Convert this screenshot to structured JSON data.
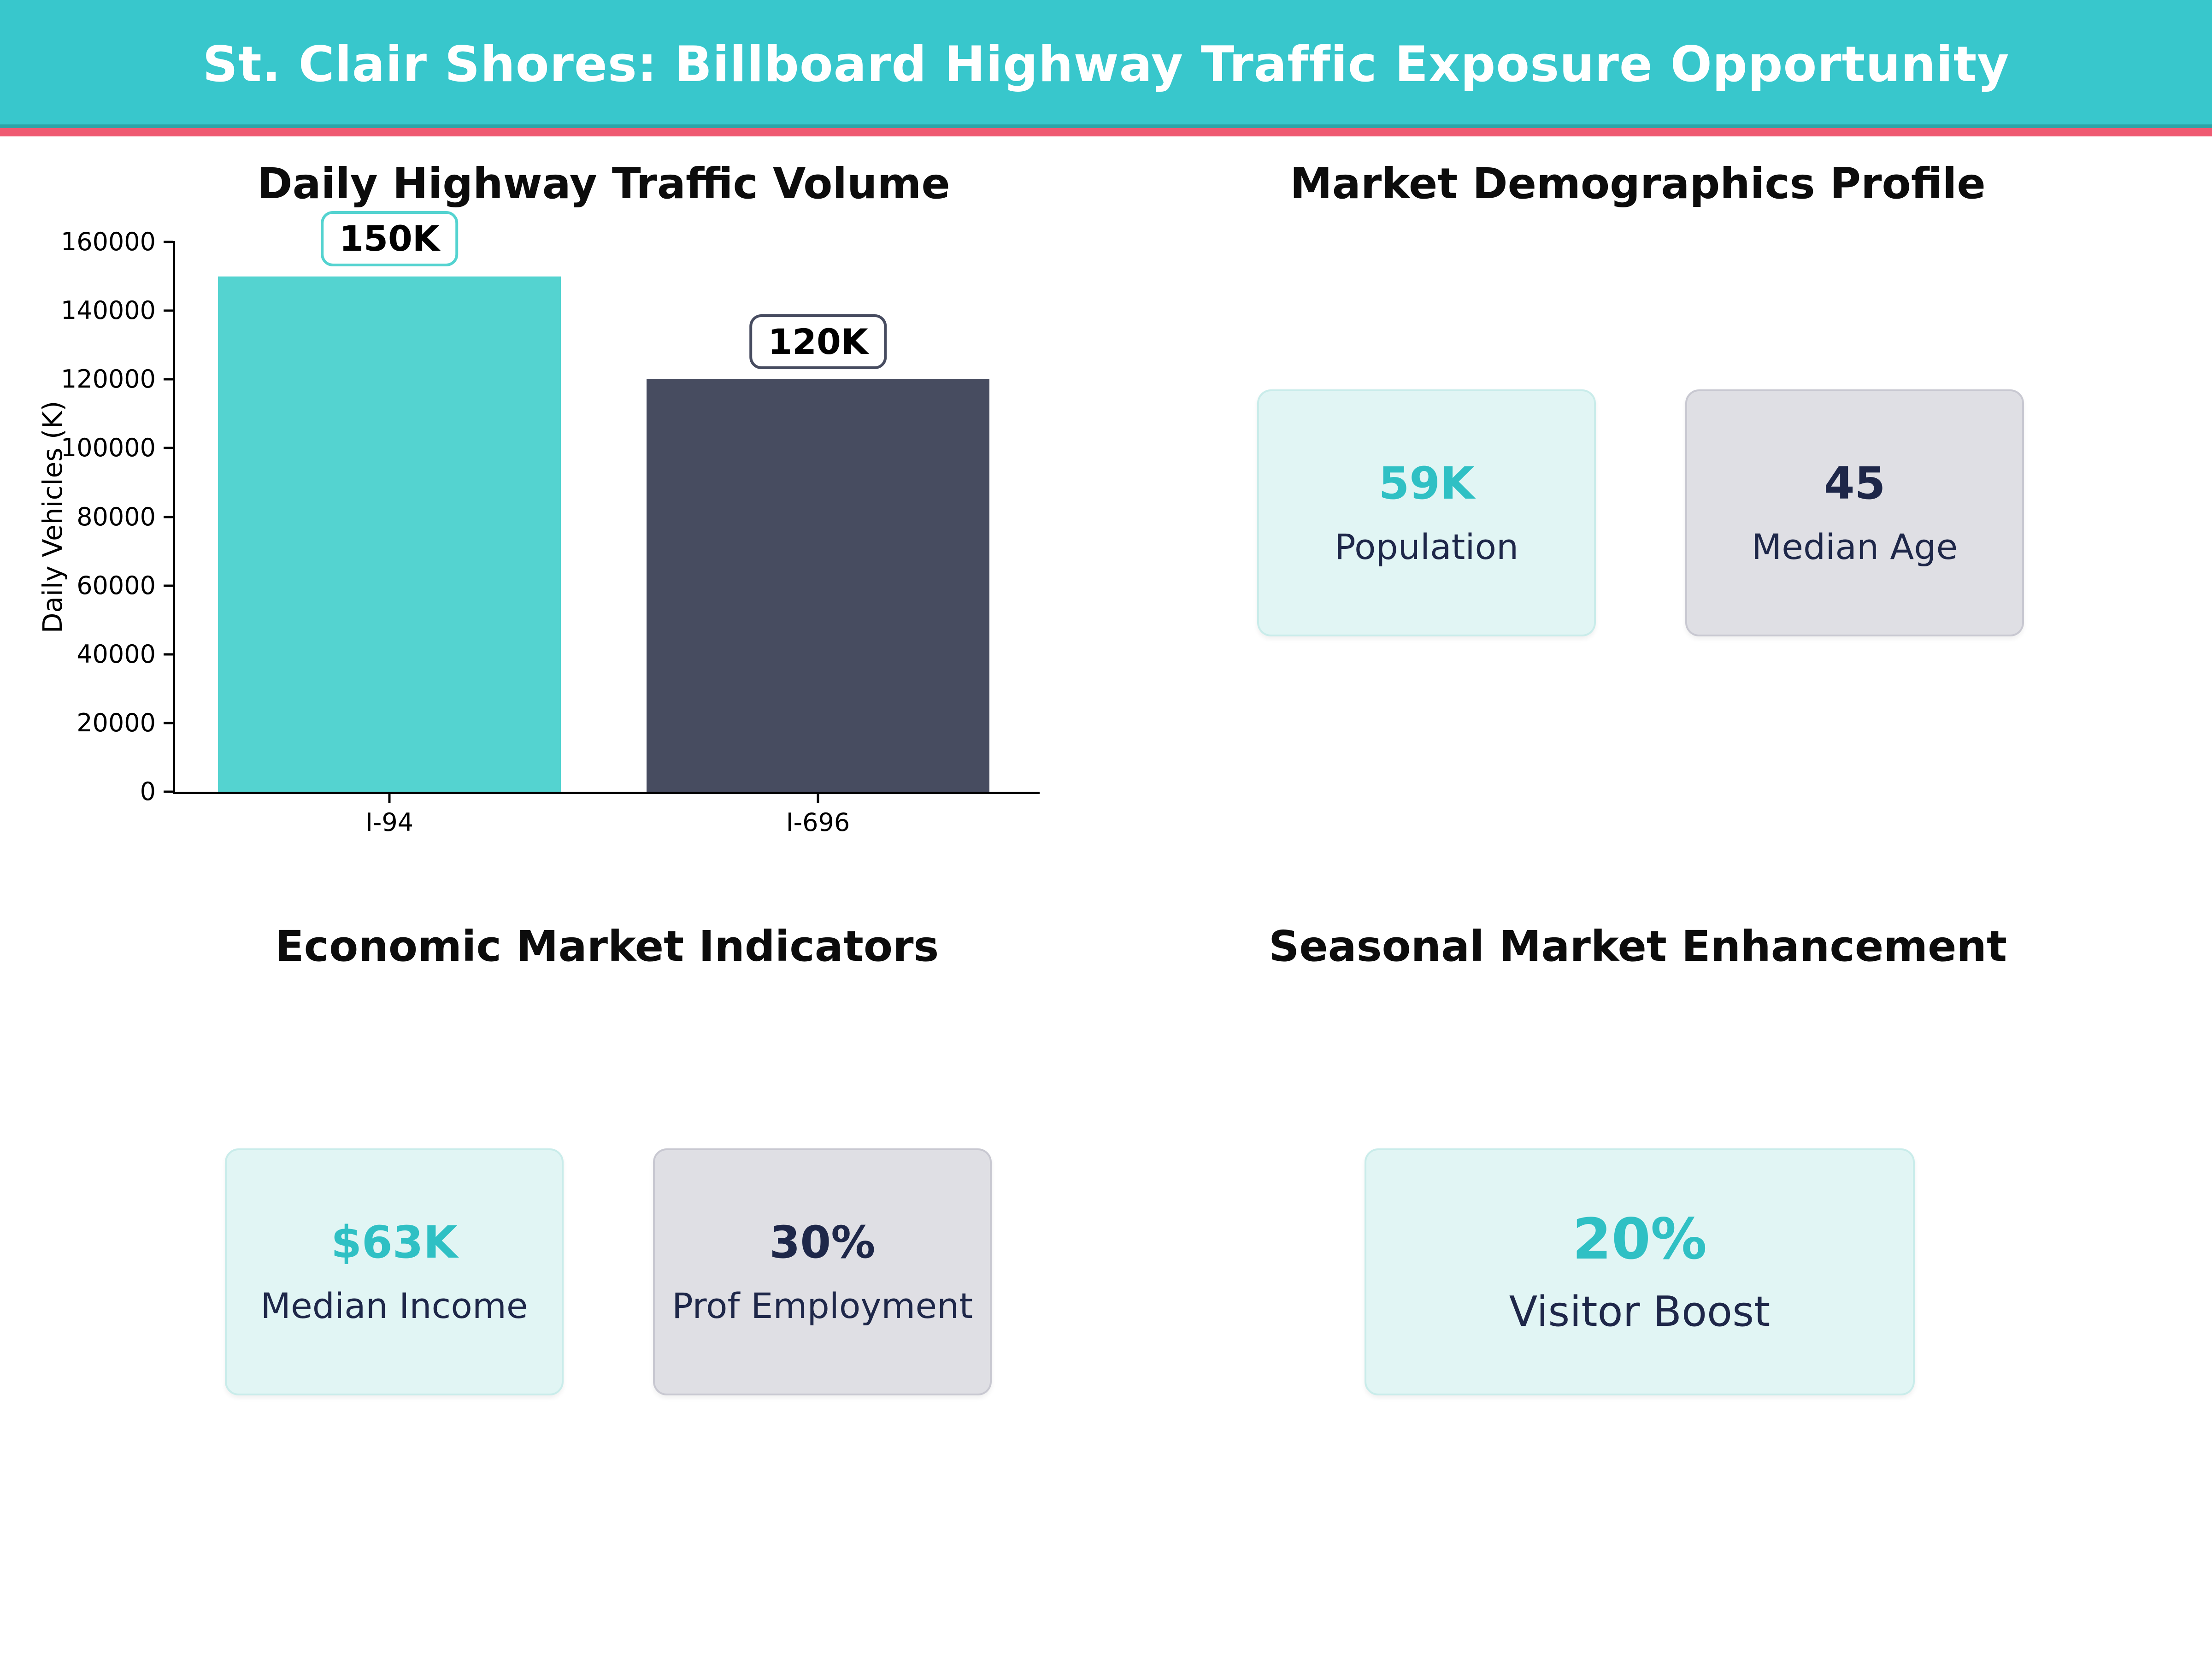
{
  "header": {
    "title": "St. Clair Shores: Billboard Highway Traffic Exposure Opportunity"
  },
  "chart_data": {
    "type": "bar",
    "title": "Daily Highway Traffic Volume",
    "categories": [
      "I-94",
      "I-696"
    ],
    "values": [
      150000,
      120000
    ],
    "bar_labels": [
      "150K",
      "120K"
    ],
    "bar_colors": [
      "#54d3d0",
      "#474c60"
    ],
    "xlabel": "",
    "ylabel": "Daily Vehicles (K)",
    "ylim": [
      0,
      160000
    ],
    "yticks": [
      0,
      20000,
      40000,
      60000,
      80000,
      100000,
      120000,
      140000,
      160000
    ],
    "grid": false,
    "legend": "none",
    "bar_width_fraction": 0.8
  },
  "sections": {
    "demographics": {
      "title": "Market Demographics Profile",
      "cards": [
        {
          "value": "59K",
          "label": "Population",
          "theme": "mint",
          "accent": "teal"
        },
        {
          "value": "45",
          "label": "Median Age",
          "theme": "gray",
          "accent": "navy"
        }
      ]
    },
    "economic": {
      "title": "Economic Market Indicators",
      "cards": [
        {
          "value": "$63K",
          "label": "Median Income",
          "theme": "mint",
          "accent": "teal"
        },
        {
          "value": "30%",
          "label": "Prof Employment",
          "theme": "gray",
          "accent": "navy"
        }
      ]
    },
    "seasonal": {
      "title": "Seasonal Market Enhancement",
      "cards": [
        {
          "value": "20%",
          "label": "Visitor Boost",
          "theme": "mint",
          "accent": "teal"
        }
      ]
    }
  },
  "colors": {
    "teal_header": "#38c7cc",
    "pink_accent": "#ef5a72",
    "bar_teal": "#54d3d0",
    "bar_slate": "#474c60",
    "mint_bg": "#e1f5f4",
    "mint_border": "#c9ecea",
    "gray_bg": "#dfdfe4",
    "gray_border": "#c8c8d1",
    "value_teal": "#2fc0c4",
    "navy": "#1e2749",
    "text": "#0c0c0c"
  }
}
